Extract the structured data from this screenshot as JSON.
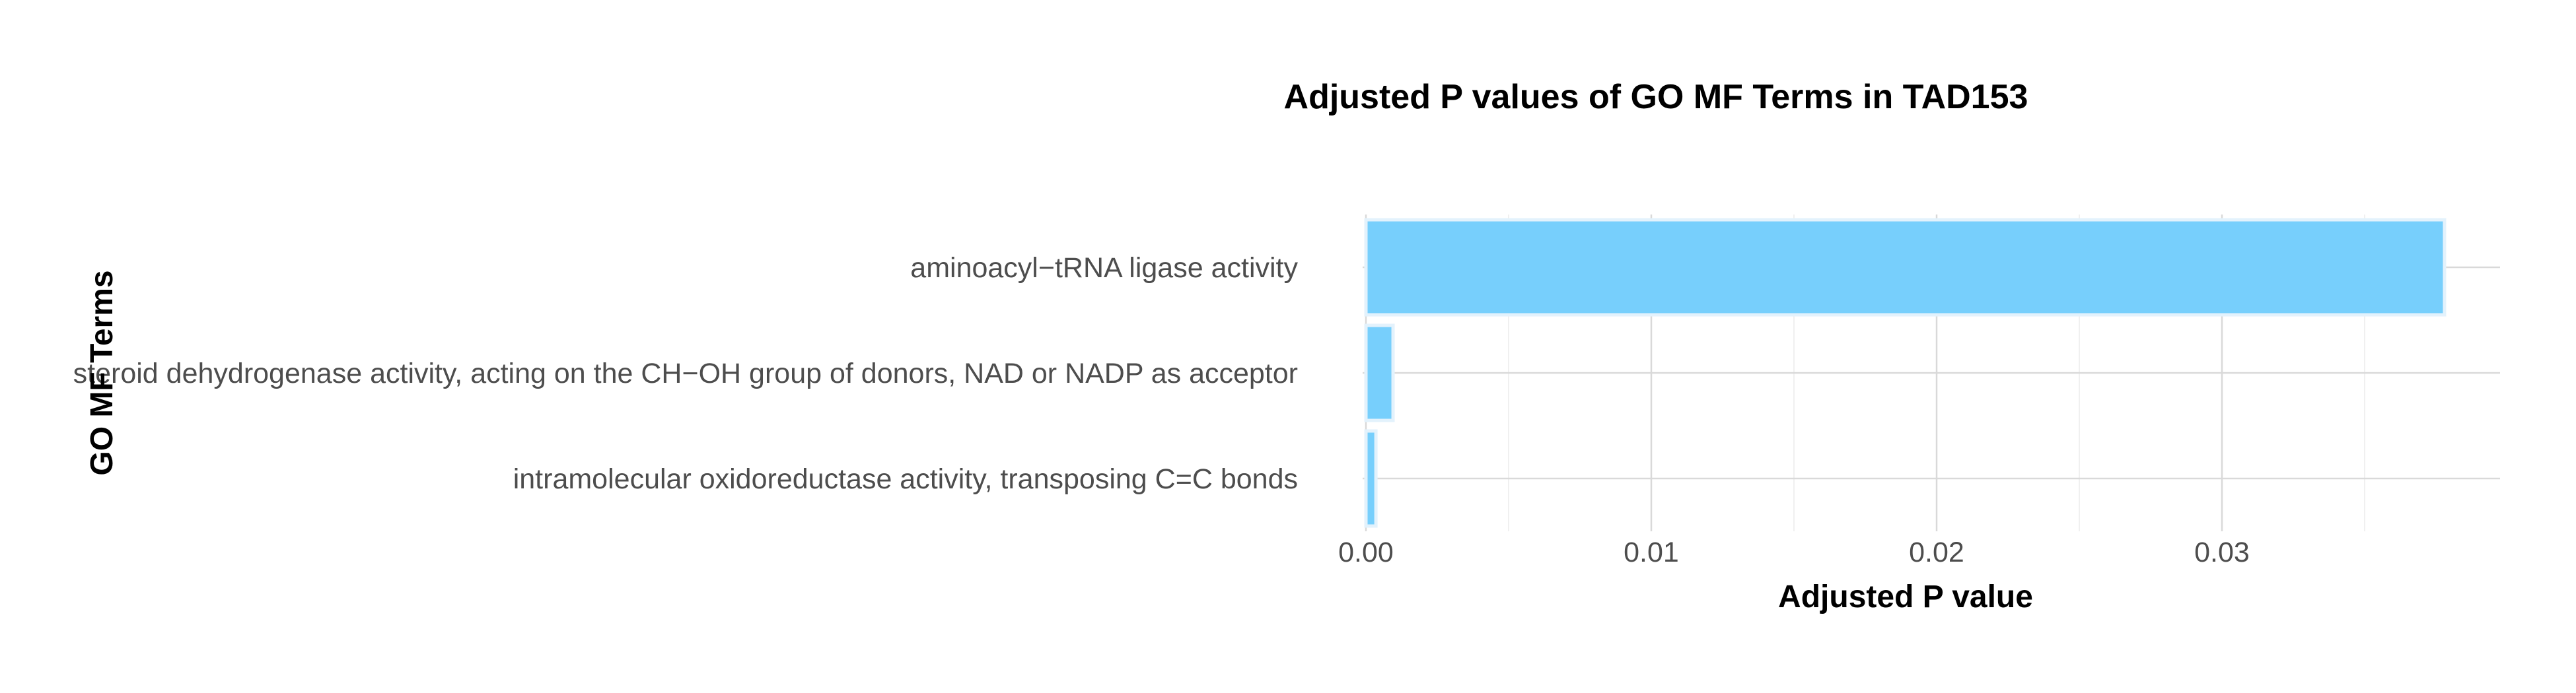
{
  "chart_data": {
    "type": "bar",
    "orientation": "horizontal",
    "title": "Adjusted P values of GO MF Terms in TAD153",
    "xlabel": "Adjusted P value",
    "ylabel": "GO MF Terms",
    "categories": [
      "aminoacyl−tRNA ligase activity",
      "steroid dehydrogenase activity, acting on the CH−OH group of donors, NAD or NADP as acceptor",
      "intramolecular oxidoreductase activity, transposing C=C bonds"
    ],
    "values": [
      0.0378,
      0.00095,
      0.00035
    ],
    "xlim": [
      0,
      0.0397
    ],
    "xticks": [
      0.0,
      0.01,
      0.02,
      0.03
    ],
    "xtick_labels": [
      "0.00",
      "0.01",
      "0.02",
      "0.03"
    ],
    "bar_color": "#77CFFC",
    "bar_edge_color": "#e3f2fc",
    "grid": true,
    "legend": "none"
  }
}
